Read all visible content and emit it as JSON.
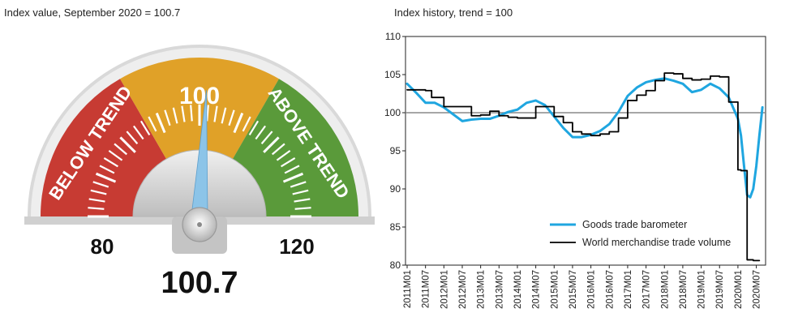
{
  "gauge": {
    "title": "Index value, September 2020 = 100.7",
    "value_label": "100.7",
    "value": 100.7,
    "min_label": "80",
    "max_label": "120",
    "center_label": "100",
    "min": 80,
    "max": 120,
    "band_below_label": "BELOW TREND",
    "band_above_label": "ABOVE TREND",
    "colors": {
      "below": "#c73b33",
      "center": "#e0a128",
      "above": "#5a9a3a",
      "needle": "#8cc4e8"
    }
  },
  "chart_data": {
    "type": "line",
    "title": "Index history, trend = 100",
    "ylim": [
      80,
      110
    ],
    "yticks": [
      80,
      85,
      90,
      95,
      100,
      105,
      110
    ],
    "reference_line": 100,
    "x_tick_labels": [
      "2011M01",
      "2011M07",
      "2012M01",
      "2012M07",
      "2013M01",
      "2013M07",
      "2014M01",
      "2014M07",
      "2015M01",
      "2015M07",
      "2016M01",
      "2016M07",
      "2017M01",
      "2017M07",
      "2018M01",
      "2018M07",
      "2019M01",
      "2019M07",
      "2020M01",
      "2020M07"
    ],
    "legend_position": "lower-right",
    "series": [
      {
        "name": "Goods trade barometer",
        "color": "#1fa6e0",
        "x": [
          "2011M01",
          "2011M04",
          "2011M07",
          "2011M10",
          "2012M01",
          "2012M04",
          "2012M07",
          "2012M10",
          "2013M01",
          "2013M04",
          "2013M07",
          "2013M10",
          "2014M01",
          "2014M04",
          "2014M07",
          "2014M10",
          "2015M01",
          "2015M04",
          "2015M07",
          "2015M10",
          "2016M01",
          "2016M04",
          "2016M07",
          "2016M10",
          "2017M01",
          "2017M04",
          "2017M07",
          "2017M10",
          "2018M01",
          "2018M04",
          "2018M07",
          "2018M10",
          "2019M01",
          "2019M04",
          "2019M07",
          "2019M10",
          "2020M01",
          "2020M02",
          "2020M03",
          "2020M04",
          "2020M05",
          "2020M06",
          "2020M07",
          "2020M08",
          "2020M09"
        ],
        "values": [
          103.8,
          102.6,
          101.3,
          101.3,
          100.7,
          99.8,
          98.9,
          99.1,
          99.2,
          99.2,
          99.6,
          100.1,
          100.4,
          101.3,
          101.6,
          101.0,
          99.5,
          98.0,
          96.8,
          96.8,
          97.1,
          97.6,
          98.5,
          100.1,
          102.2,
          103.3,
          104.0,
          104.3,
          104.5,
          104.2,
          103.8,
          102.7,
          103.0,
          103.8,
          103.2,
          102.0,
          99.2,
          97.0,
          93.0,
          89.2,
          88.9,
          90.0,
          93.0,
          97.0,
          100.7
        ],
        "linewidth": 3
      },
      {
        "name": "World merchandise trade volume",
        "color": "#000000",
        "x": [
          "2011M01",
          "2011M07",
          "2011M09",
          "2012M01",
          "2012M07",
          "2012M10",
          "2013M01",
          "2013M04",
          "2013M07",
          "2013M10",
          "2014M01",
          "2014M07",
          "2014M10",
          "2015M01",
          "2015M04",
          "2015M07",
          "2015M10",
          "2016M01",
          "2016M04",
          "2016M07",
          "2016M10",
          "2017M01",
          "2017M04",
          "2017M07",
          "2017M10",
          "2018M01",
          "2018M04",
          "2018M07",
          "2018M10",
          "2019M01",
          "2019M04",
          "2019M07",
          "2019M10",
          "2020M01",
          "2020M02",
          "2020M04",
          "2020M06"
        ],
        "values": [
          103.0,
          102.9,
          102.0,
          100.8,
          100.8,
          99.6,
          99.7,
          100.2,
          99.6,
          99.4,
          99.3,
          100.8,
          100.8,
          99.5,
          98.7,
          97.5,
          97.2,
          97.0,
          97.2,
          97.5,
          99.3,
          101.6,
          102.3,
          102.9,
          104.2,
          105.2,
          105.1,
          104.5,
          104.3,
          104.4,
          104.8,
          104.7,
          101.4,
          92.5,
          92.4,
          80.7,
          80.6
        ],
        "step": true,
        "linewidth": 1.8
      }
    ]
  }
}
